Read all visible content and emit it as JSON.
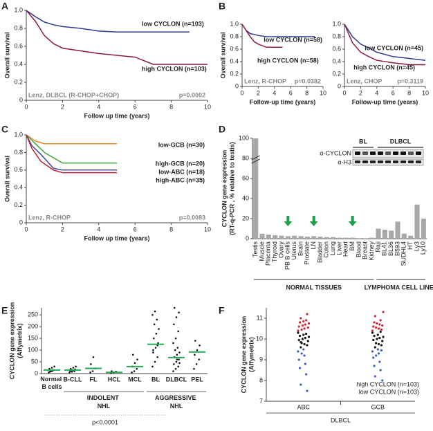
{
  "panel_labels": [
    "A",
    "B",
    "C",
    "D",
    "E",
    "F"
  ],
  "chart_data": [
    {
      "type": "line",
      "ylabel": "Overall survival",
      "xlabel": "Follow up time (years)",
      "annotations": [
        "Lenz, DLBCL (R-CHOP+CHOP)",
        "p=0.0002"
      ],
      "xlim": [
        0,
        10
      ],
      "ylim": [
        0,
        1
      ],
      "xticks": [
        0,
        2,
        4,
        6,
        8,
        10
      ],
      "yticks": [
        0,
        0.2,
        0.4,
        0.6,
        0.8,
        {
          "value": 1,
          "label": "1.0"
        }
      ],
      "series": [
        {
          "name": "low CYCLON (n=103)",
          "color": "#2b3a8f",
          "x": [
            0,
            0.5,
            1,
            1.5,
            2,
            3,
            4,
            5,
            9
          ],
          "values": [
            1,
            0.93,
            0.87,
            0.84,
            0.82,
            0.8,
            0.77,
            0.76,
            0.76
          ]
        },
        {
          "name": "high CYCLON (n=103)",
          "color": "#8c1c3e",
          "x": [
            0,
            0.5,
            1,
            1.5,
            2,
            3,
            4,
            5,
            6,
            7,
            8,
            10
          ],
          "values": [
            1,
            0.88,
            0.72,
            0.63,
            0.58,
            0.55,
            0.52,
            0.5,
            0.48,
            0.4,
            0.4,
            0.4
          ]
        }
      ]
    },
    {
      "type": "line",
      "ylabel": "Overall survival",
      "xlabel": "Follow-up time (years)",
      "annotations": [
        "Lenz, R-CHOP",
        "p=0.0382"
      ],
      "xlim": [
        0,
        10
      ],
      "ylim": [
        0,
        1
      ],
      "xticks": [
        0,
        2,
        4,
        6,
        8,
        10
      ],
      "yticks": [
        0,
        0.2,
        0.4,
        0.6,
        0.8,
        {
          "value": 1,
          "label": "1.0"
        }
      ],
      "series": [
        {
          "name": "low CYCLON (n=58)",
          "color": "#2b3a8f",
          "x": [
            0,
            0.5,
            1,
            2,
            3,
            9
          ],
          "values": [
            1,
            0.9,
            0.85,
            0.82,
            0.8,
            0.8
          ]
        },
        {
          "name": "high CYCLON (n=58)",
          "color": "#8c1c3e",
          "x": [
            0,
            0.5,
            1,
            1.5,
            2,
            3,
            5
          ],
          "values": [
            1,
            0.9,
            0.8,
            0.72,
            0.68,
            0.63,
            0.63
          ]
        }
      ]
    },
    {
      "type": "line",
      "xlabel": "Follow-up time (years)",
      "annotations": [
        "Lenz, CHOP",
        "p=0.3119"
      ],
      "xlim": [
        0,
        10
      ],
      "ylim": [
        0,
        1
      ],
      "xticks": [
        0,
        2,
        4,
        6,
        8,
        10
      ],
      "yticks": [
        0,
        0.2,
        0.4,
        0.6,
        0.8,
        {
          "value": 1,
          "label": "1.0"
        }
      ],
      "series": [
        {
          "name": "low CYCLON (n=45)",
          "color": "#2b3a8f",
          "x": [
            0,
            1,
            2,
            3,
            4,
            6,
            8,
            10
          ],
          "values": [
            1,
            0.8,
            0.68,
            0.62,
            0.55,
            0.48,
            0.45,
            0.42
          ]
        },
        {
          "name": "high CYCLON (n=45)",
          "color": "#8c1c3e",
          "x": [
            0,
            1,
            2,
            3,
            4,
            6,
            8,
            10
          ],
          "values": [
            1,
            0.7,
            0.55,
            0.48,
            0.42,
            0.38,
            0.35,
            0.35
          ]
        }
      ]
    },
    {
      "type": "line",
      "ylabel": "Overall survival",
      "xlabel": "Follow up time (years)",
      "annotations": [
        "Lenz, R-CHOP",
        "p=0.0083"
      ],
      "xlim": [
        0,
        10
      ],
      "ylim": [
        0,
        1
      ],
      "xticks": [
        0,
        2,
        4,
        6,
        8,
        10
      ],
      "yticks": [
        0,
        0.2,
        0.4,
        0.6,
        0.8,
        {
          "value": 1,
          "label": "1.0"
        }
      ],
      "series": [
        {
          "name": "low-GCB (n=30)",
          "color": "#e8872c",
          "x": [
            0,
            0.5,
            1,
            4,
            5
          ],
          "values": [
            1,
            0.93,
            0.9,
            0.9,
            0.9
          ]
        },
        {
          "name": "high-GCB (n=20)",
          "color": "#3aa63a",
          "x": [
            0,
            0.5,
            1,
            2,
            5
          ],
          "values": [
            1,
            0.9,
            0.8,
            0.68,
            0.68
          ]
        },
        {
          "name": "low-ABC (n=18)",
          "color": "#3a4aa0",
          "x": [
            0,
            0.3,
            0.8,
            1.5,
            2,
            5
          ],
          "values": [
            1,
            0.88,
            0.78,
            0.62,
            0.6,
            0.6
          ]
        },
        {
          "name": "high-ABC (n=35)",
          "color": "#c02030",
          "x": [
            0,
            0.3,
            0.8,
            1.5,
            2,
            5
          ],
          "values": [
            1,
            0.85,
            0.7,
            0.6,
            0.57,
            0.57
          ]
        }
      ]
    },
    {
      "type": "bar",
      "ylabel": "CYCLON gene expression",
      "ylabel2": "(RT-q-PCR , % relative to testis)",
      "categories": [
        "Testis",
        "Muscle",
        "Placenta",
        "Thyroid",
        "Ovary",
        "PB B cells",
        "Uterus",
        "Brain",
        "Prostate",
        "LN",
        "Bladder",
        "Colon",
        "Lung",
        "Liver",
        "Heart",
        "BM",
        "Blood",
        "Breast",
        "Kidney",
        "Raji",
        "BL41",
        "BL36",
        "B593",
        "SUDHL4",
        "HT",
        "Ly3",
        "Ly10"
      ],
      "values": [
        100,
        5,
        4,
        3.5,
        3,
        2.5,
        3,
        2.5,
        2,
        2.5,
        2,
        1.5,
        1.5,
        1,
        1,
        1,
        0.5,
        0.5,
        1,
        10,
        9,
        8,
        17,
        5,
        3,
        34,
        20
      ],
      "color": "#a8a8a8",
      "ylim": [
        0,
        100
      ],
      "yticks": [
        0,
        20,
        40,
        60,
        80,
        100
      ],
      "groups": [
        "NORMAL TISSUES",
        "LYMPHOMA CELL LINES"
      ],
      "blot": {
        "lanes": [
          "BL",
          "DLBCL"
        ],
        "rows": [
          "α-CYCLON",
          "α-H3"
        ]
      }
    },
    {
      "type": "dot",
      "ylabel": "CYCLON gene expression",
      "ylabel2": "(Affymetrix)",
      "categories": [
        "Normal B cells",
        "B-CLL",
        "FL",
        "HCL",
        "MCL",
        "BL",
        "DLBCL",
        "PEL"
      ],
      "points": [
        [
          5,
          10,
          15,
          20,
          25,
          30,
          8,
          12
        ],
        [
          5,
          8,
          10,
          12,
          15,
          18,
          20,
          25,
          30,
          10,
          14
        ],
        [
          5,
          10,
          22,
          40,
          70
        ],
        [
          2,
          5,
          8,
          10
        ],
        [
          5,
          10,
          20,
          30,
          45,
          60,
          80
        ],
        [
          30,
          50,
          70,
          90,
          110,
          130,
          150,
          170,
          190,
          210,
          230,
          250,
          265,
          120,
          100
        ],
        [
          10,
          20,
          30,
          40,
          50,
          60,
          70,
          80,
          90,
          100,
          110,
          130,
          150,
          180,
          210,
          240,
          260,
          280,
          60,
          45
        ],
        [
          20,
          40,
          60,
          80,
          100,
          120,
          140
        ]
      ],
      "medians": [
        15,
        15,
        22,
        5,
        30,
        125,
        68,
        92
      ],
      "color": "#111111",
      "median_color": "#22aa55",
      "ylim": [
        0,
        280
      ],
      "yticks": [
        0,
        50,
        100,
        150,
        200,
        250
      ],
      "groups": [
        "INDOLENT NHL",
        "AGGRESSIVE NHL"
      ],
      "annotation": "p<0.0001"
    },
    {
      "type": "strip",
      "ylabel": "CYCLON gene expression",
      "ylabel2": "(Affymetrix)",
      "xlabel": "DLBCL",
      "categories": [
        "ABC",
        "GCB"
      ],
      "ylim": [
        7,
        11.5
      ],
      "yticks": [
        7,
        8,
        9,
        10,
        11
      ],
      "series": [
        {
          "name": "high CYCLON (n=103)",
          "color": "#d02838",
          "values": [
            [
              10.4,
              10.5,
              10.6,
              10.7,
              10.8,
              10.9,
              11,
              11.2,
              10.45,
              10.55,
              10.65,
              10.75,
              10.85
            ],
            [
              10.4,
              10.5,
              10.6,
              10.7,
              10.8,
              10.9,
              11.1,
              10.45,
              10.55,
              10.65,
              10.75,
              11.3
            ]
          ]
        },
        {
          "color": "#111111",
          "values": [
            [
              9.6,
              9.7,
              9.8,
              9.9,
              10,
              10.1,
              10.2,
              10.3,
              9.75,
              9.95,
              10.05,
              10.15,
              10.25,
              9.85
            ],
            [
              9.6,
              9.7,
              9.8,
              9.9,
              10,
              10.1,
              10.2,
              10.3,
              9.75,
              9.95,
              10.05,
              10.15,
              10.35
            ]
          ]
        },
        {
          "name": "low CYCLON (n=103)",
          "color": "#3563c0",
          "values": [
            [
              9.5,
              9.4,
              9.2,
              9,
              8.8,
              8.6,
              8.3,
              7.8,
              7.5,
              9.3
            ],
            [
              9.5,
              9.4,
              9.3,
              9.1,
              8.9,
              8.7,
              8.5,
              8.2,
              9.45,
              9.2,
              8
            ]
          ]
        }
      ]
    }
  ]
}
